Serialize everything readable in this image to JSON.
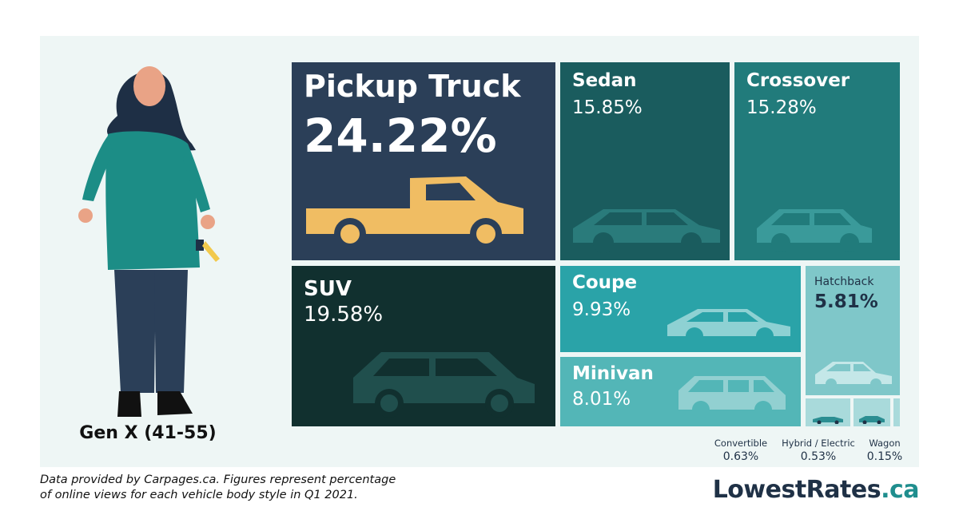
{
  "chart_data": {
    "type": "treemap",
    "series_label": "Gen X (41-55)",
    "items": [
      {
        "label": "Pickup Truck",
        "value": 24.22,
        "display": "24.22%",
        "color": "#2b3f58"
      },
      {
        "label": "SUV",
        "value": 19.58,
        "display": "19.58%",
        "color": "#11302f"
      },
      {
        "label": "Sedan",
        "value": 15.85,
        "display": "15.85%",
        "color": "#1a5c5e"
      },
      {
        "label": "Crossover",
        "value": 15.28,
        "display": "15.28%",
        "color": "#217b7b"
      },
      {
        "label": "Coupe",
        "value": 9.93,
        "display": "9.93%",
        "color": "#2aa3a8"
      },
      {
        "label": "Minivan",
        "value": 8.01,
        "display": "8.01%",
        "color": "#53b6b7"
      },
      {
        "label": "Hatchback",
        "value": 5.81,
        "display": "5.81%",
        "color": "#7fc7c9"
      },
      {
        "label": "Convertible",
        "value": 0.63,
        "display": "0.63%",
        "color": "#a9dadb"
      },
      {
        "label": "Hybrid / Electric",
        "value": 0.53,
        "display": "0.53%",
        "color": "#a9dadb"
      },
      {
        "label": "Wagon",
        "value": 0.15,
        "display": "0.15%",
        "color": "#a9dadb"
      }
    ]
  },
  "person": {
    "label": "Gen X (41-55)"
  },
  "footnote": {
    "line1": "Data provided by Carpages.ca. Figures represent percentage",
    "line2": "of online views for each vehicle body style in Q1 2021."
  },
  "brand": {
    "main": "LowestRates",
    "tld": ".ca"
  }
}
